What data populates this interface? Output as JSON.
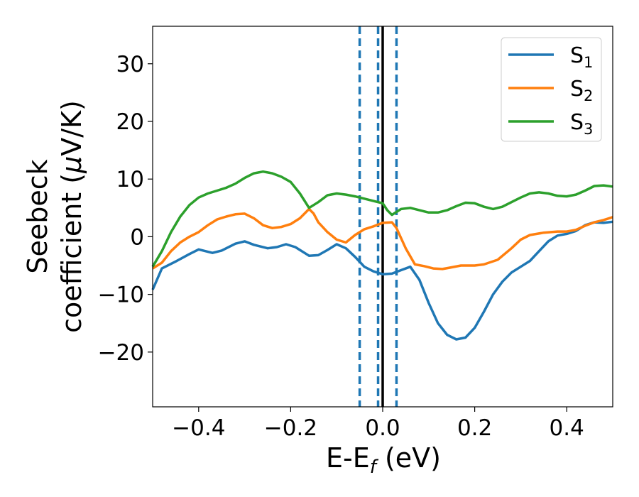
{
  "chart_data": {
    "type": "line",
    "xlabel": {
      "main": "E-E",
      "sub": "f",
      "unit": " (eV)"
    },
    "ylabel": {
      "line1": "Seebeck",
      "line2_prefix": "coefficient  (",
      "mu": "μ",
      "line2_suffix": "V/K)"
    },
    "xlim": [
      -0.5,
      0.5
    ],
    "ylim": [
      -29.5,
      36.5
    ],
    "xticks": [
      -0.4,
      -0.2,
      0.0,
      0.2,
      0.4
    ],
    "xtick_labels": [
      "−0.4",
      "−0.2",
      "0.0",
      "0.2",
      "0.4"
    ],
    "yticks": [
      -20,
      -10,
      0,
      10,
      20,
      30
    ],
    "ytick_labels": [
      "−20",
      "−10",
      "0",
      "10",
      "20",
      "30"
    ],
    "grid": false,
    "legend_position": "top-right",
    "vertical_lines": [
      {
        "x": -0.05,
        "style": "dashed",
        "color": "#1f77b4"
      },
      {
        "x": -0.01,
        "style": "dashed",
        "color": "#1f77b4"
      },
      {
        "x": 0.03,
        "style": "dashed",
        "color": "#1f77b4"
      },
      {
        "x": 0.0,
        "style": "solid",
        "color": "#000000"
      }
    ],
    "series": [
      {
        "name": "S",
        "sub": "1",
        "color": "#1f77b4",
        "points": [
          [
            -0.5,
            -9.2
          ],
          [
            -0.48,
            -5.5
          ],
          [
            -0.45,
            -4.3
          ],
          [
            -0.42,
            -3.0
          ],
          [
            -0.4,
            -2.2
          ],
          [
            -0.37,
            -2.8
          ],
          [
            -0.35,
            -2.4
          ],
          [
            -0.32,
            -1.2
          ],
          [
            -0.3,
            -0.8
          ],
          [
            -0.28,
            -1.4
          ],
          [
            -0.25,
            -2.0
          ],
          [
            -0.23,
            -1.8
          ],
          [
            -0.21,
            -1.3
          ],
          [
            -0.19,
            -1.8
          ],
          [
            -0.16,
            -3.3
          ],
          [
            -0.14,
            -3.2
          ],
          [
            -0.12,
            -2.3
          ],
          [
            -0.1,
            -1.3
          ],
          [
            -0.08,
            -2.0
          ],
          [
            -0.06,
            -3.5
          ],
          [
            -0.04,
            -5.2
          ],
          [
            -0.02,
            -6.0
          ],
          [
            0.0,
            -6.5
          ],
          [
            0.02,
            -6.4
          ],
          [
            0.04,
            -5.8
          ],
          [
            0.06,
            -5.2
          ],
          [
            0.08,
            -7.5
          ],
          [
            0.1,
            -11.5
          ],
          [
            0.12,
            -15.0
          ],
          [
            0.14,
            -17.0
          ],
          [
            0.16,
            -17.8
          ],
          [
            0.18,
            -17.5
          ],
          [
            0.2,
            -15.8
          ],
          [
            0.22,
            -13.0
          ],
          [
            0.24,
            -10.0
          ],
          [
            0.26,
            -7.8
          ],
          [
            0.28,
            -6.2
          ],
          [
            0.3,
            -5.2
          ],
          [
            0.32,
            -4.2
          ],
          [
            0.34,
            -2.5
          ],
          [
            0.36,
            -0.8
          ],
          [
            0.38,
            0.2
          ],
          [
            0.4,
            0.5
          ],
          [
            0.42,
            1.0
          ],
          [
            0.44,
            2.0
          ],
          [
            0.46,
            2.5
          ],
          [
            0.48,
            2.4
          ],
          [
            0.5,
            2.6
          ]
        ]
      },
      {
        "name": "S",
        "sub": "2",
        "color": "#ff7f0e",
        "points": [
          [
            -0.5,
            -5.5
          ],
          [
            -0.48,
            -4.5
          ],
          [
            -0.46,
            -2.5
          ],
          [
            -0.44,
            -1.0
          ],
          [
            -0.42,
            0.0
          ],
          [
            -0.4,
            0.8
          ],
          [
            -0.38,
            2.0
          ],
          [
            -0.36,
            3.0
          ],
          [
            -0.34,
            3.5
          ],
          [
            -0.32,
            3.9
          ],
          [
            -0.3,
            4.0
          ],
          [
            -0.28,
            3.2
          ],
          [
            -0.26,
            2.0
          ],
          [
            -0.24,
            1.5
          ],
          [
            -0.22,
            1.7
          ],
          [
            -0.2,
            2.2
          ],
          [
            -0.18,
            3.2
          ],
          [
            -0.16,
            4.8
          ],
          [
            -0.15,
            4.0
          ],
          [
            -0.14,
            2.5
          ],
          [
            -0.12,
            0.8
          ],
          [
            -0.1,
            -0.5
          ],
          [
            -0.08,
            -1.0
          ],
          [
            -0.06,
            0.3
          ],
          [
            -0.04,
            1.3
          ],
          [
            -0.02,
            1.8
          ],
          [
            0.0,
            2.4
          ],
          [
            0.02,
            2.5
          ],
          [
            0.03,
            1.5
          ],
          [
            0.05,
            -2.0
          ],
          [
            0.07,
            -4.8
          ],
          [
            0.09,
            -5.1
          ],
          [
            0.11,
            -5.5
          ],
          [
            0.13,
            -5.6
          ],
          [
            0.15,
            -5.3
          ],
          [
            0.17,
            -5.0
          ],
          [
            0.2,
            -5.0
          ],
          [
            0.22,
            -4.8
          ],
          [
            0.25,
            -4.0
          ],
          [
            0.28,
            -2.0
          ],
          [
            0.3,
            -0.5
          ],
          [
            0.32,
            0.3
          ],
          [
            0.35,
            0.7
          ],
          [
            0.38,
            0.9
          ],
          [
            0.4,
            0.9
          ],
          [
            0.42,
            1.2
          ],
          [
            0.44,
            1.9
          ],
          [
            0.46,
            2.5
          ],
          [
            0.48,
            2.9
          ],
          [
            0.5,
            3.4
          ]
        ]
      },
      {
        "name": "S",
        "sub": "3",
        "color": "#2ca02c",
        "points": [
          [
            -0.5,
            -5.2
          ],
          [
            -0.48,
            -2.5
          ],
          [
            -0.46,
            0.8
          ],
          [
            -0.44,
            3.5
          ],
          [
            -0.42,
            5.5
          ],
          [
            -0.4,
            6.8
          ],
          [
            -0.38,
            7.5
          ],
          [
            -0.36,
            8.0
          ],
          [
            -0.34,
            8.5
          ],
          [
            -0.32,
            9.2
          ],
          [
            -0.3,
            10.2
          ],
          [
            -0.28,
            11.0
          ],
          [
            -0.26,
            11.3
          ],
          [
            -0.24,
            11.0
          ],
          [
            -0.22,
            10.4
          ],
          [
            -0.2,
            9.5
          ],
          [
            -0.18,
            7.5
          ],
          [
            -0.16,
            5.0
          ],
          [
            -0.14,
            6.0
          ],
          [
            -0.12,
            7.2
          ],
          [
            -0.1,
            7.5
          ],
          [
            -0.08,
            7.3
          ],
          [
            -0.06,
            7.0
          ],
          [
            -0.04,
            6.6
          ],
          [
            -0.02,
            6.2
          ],
          [
            0.0,
            5.8
          ],
          [
            0.01,
            4.6
          ],
          [
            0.02,
            3.8
          ],
          [
            0.04,
            4.8
          ],
          [
            0.06,
            5.0
          ],
          [
            0.08,
            4.6
          ],
          [
            0.1,
            4.2
          ],
          [
            0.12,
            4.2
          ],
          [
            0.14,
            4.6
          ],
          [
            0.16,
            5.3
          ],
          [
            0.18,
            5.9
          ],
          [
            0.2,
            5.8
          ],
          [
            0.22,
            5.2
          ],
          [
            0.24,
            4.8
          ],
          [
            0.26,
            5.2
          ],
          [
            0.28,
            6.0
          ],
          [
            0.3,
            6.8
          ],
          [
            0.32,
            7.5
          ],
          [
            0.34,
            7.7
          ],
          [
            0.36,
            7.5
          ],
          [
            0.38,
            7.1
          ],
          [
            0.4,
            7.0
          ],
          [
            0.42,
            7.3
          ],
          [
            0.44,
            8.0
          ],
          [
            0.46,
            8.8
          ],
          [
            0.48,
            8.9
          ],
          [
            0.5,
            8.7
          ]
        ]
      }
    ]
  }
}
